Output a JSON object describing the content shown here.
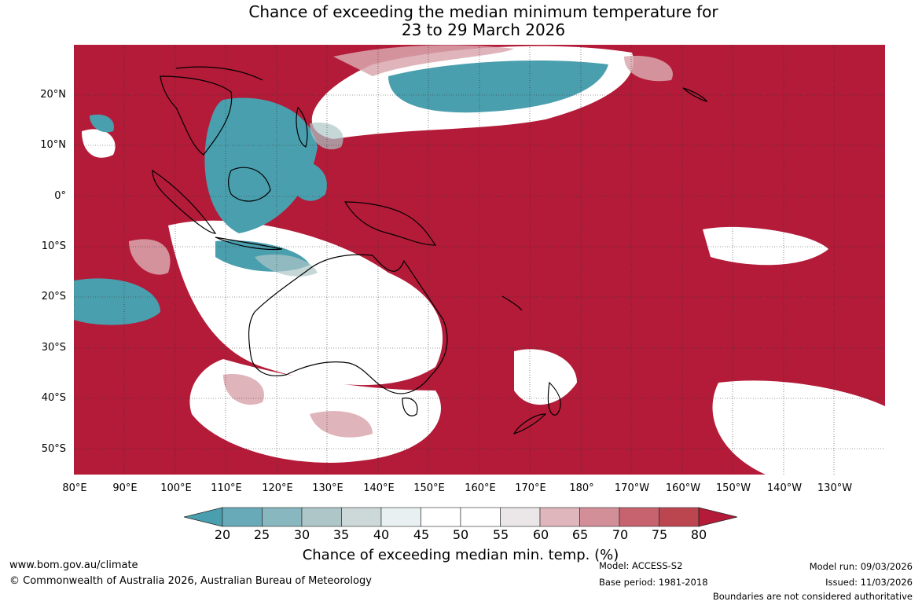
{
  "title": {
    "line1": "Chance of exceeding the median minimum temperature for",
    "line2": "23 to 29 March 2026"
  },
  "map": {
    "latitude_labels": [
      "20°N",
      "10°N",
      "0°",
      "10°S",
      "20°S",
      "30°S",
      "40°S",
      "50°S"
    ],
    "longitude_labels": [
      "80°E",
      "90°E",
      "100°E",
      "110°E",
      "120°E",
      "130°E",
      "140°E",
      "150°E",
      "160°E",
      "170°E",
      "180°",
      "170°W",
      "160°W",
      "150°W",
      "140°W",
      "130°W"
    ],
    "background_color": "#b31b38"
  },
  "colorbar": {
    "ticks": [
      "20",
      "25",
      "30",
      "35",
      "40",
      "45",
      "50",
      "55",
      "60",
      "65",
      "70",
      "75",
      "80"
    ],
    "colors": [
      "#4a9fae",
      "#68aab8",
      "#88b7c0",
      "#aec6c8",
      "#cdd8d9",
      "#e9f0f1",
      "#ffffff",
      "#ffffff",
      "#ebe6e7",
      "#deb6bc",
      "#d38f98",
      "#c6636f",
      "#bc4650",
      "#b31b38"
    ],
    "label": "Chance of exceeding median min. temp. (%)"
  },
  "footer": {
    "website": "www.bom.gov.au/climate",
    "copyright": "© Commonwealth of Australia 2026, Australian Bureau of Meteorology",
    "model": "Model: ACCESS-S2",
    "base_period": "Base period: 1981-2018",
    "model_run": "Model run: 09/03/2026",
    "issued": "Issued: 11/03/2026",
    "disclaimer": "Boundaries are not considered authoritative"
  }
}
